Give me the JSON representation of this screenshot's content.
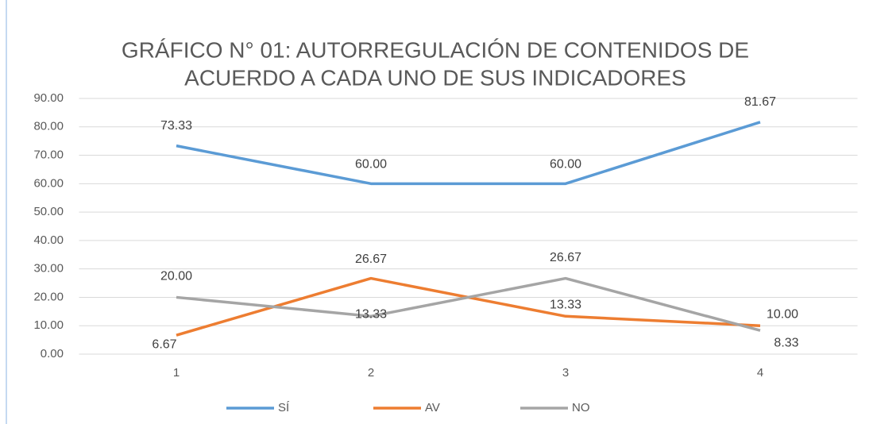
{
  "chart_data": {
    "type": "line",
    "title": [
      "GRÁFICO N° 01: AUTORREGULACIÓN DE CONTENIDOS DE",
      "ACUERDO A CADA UNO DE SUS INDICADORES"
    ],
    "categories": [
      "1",
      "2",
      "3",
      "4"
    ],
    "series": [
      {
        "name": "SÍ",
        "color": "#5b9bd5",
        "values": [
          73.33,
          60,
          60,
          81.67
        ],
        "value_labels": [
          "73.33",
          "60.00",
          "60.00",
          "81.67"
        ]
      },
      {
        "name": "AV",
        "color": "#ed7d31",
        "values": [
          6.67,
          26.67,
          13.33,
          10
        ],
        "value_labels": [
          "6.67",
          "26.67",
          "13.33",
          "10.00"
        ]
      },
      {
        "name": "NO",
        "color": "#a5a5a5",
        "values": [
          20,
          13.33,
          26.67,
          8.33
        ],
        "value_labels": [
          "20.00",
          "13.33",
          "26.67",
          "8.33"
        ]
      }
    ],
    "ylim": [
      0,
      90
    ],
    "yticks": [
      {
        "value": 0,
        "label": "0.00"
      },
      {
        "value": 10,
        "label": "10.00"
      },
      {
        "value": 20,
        "label": "20.00"
      },
      {
        "value": 30,
        "label": "30.00"
      },
      {
        "value": 40,
        "label": "40.00"
      },
      {
        "value": 50,
        "label": "50.00"
      },
      {
        "value": 60,
        "label": "60.00"
      },
      {
        "value": 70,
        "label": "70.00"
      },
      {
        "value": 80,
        "label": "80.00"
      },
      {
        "value": 90,
        "label": "90.00"
      }
    ],
    "grid": true,
    "legend": "bottom"
  }
}
